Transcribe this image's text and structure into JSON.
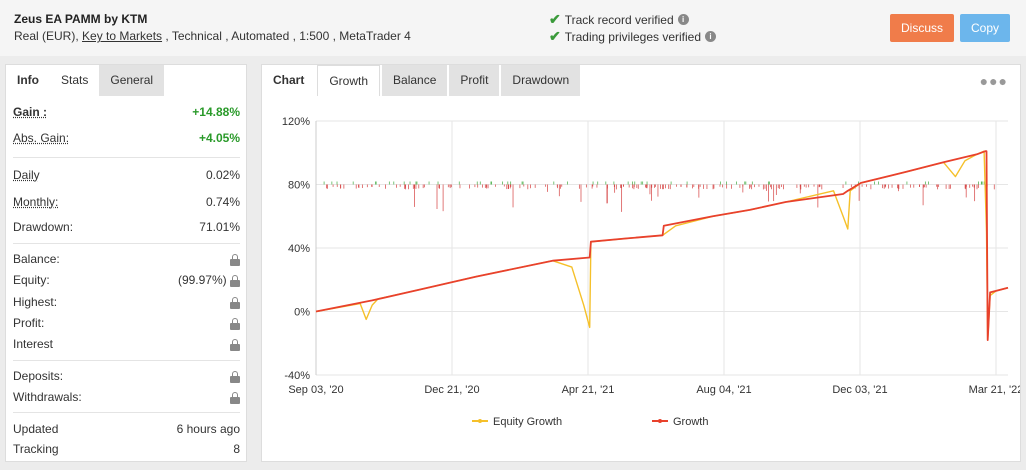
{
  "header": {
    "title": "Zeus EA PAMM by KTM",
    "sub_prefix": "Real (EUR), ",
    "broker_link": "Key to Markets",
    "sub_suffix": " , Technical , Automated , 1:500 , MetaTrader 4",
    "track_record": "Track record verified",
    "trading_privileges": "Trading privileges verified",
    "discuss_label": "Discuss",
    "copy_label": "Copy"
  },
  "left_tabs": [
    "Info",
    "Stats",
    "General"
  ],
  "stats": {
    "gain": {
      "label": "Gain :",
      "value": "+14.88%"
    },
    "abs_gain": {
      "label": "Abs. Gain:",
      "value": "+4.05%"
    },
    "daily": {
      "label": "Daily",
      "value": "0.02%"
    },
    "monthly": {
      "label": "Monthly:",
      "value": "0.74%"
    },
    "drawdown": {
      "label": "Drawdown:",
      "value": "71.01%"
    },
    "balance": {
      "label": "Balance:"
    },
    "equity": {
      "label": "Equity:",
      "value": "(99.97%)"
    },
    "highest": {
      "label": "Highest:"
    },
    "profit": {
      "label": "Profit:"
    },
    "interest": {
      "label": "Interest"
    },
    "deposits": {
      "label": "Deposits:"
    },
    "withdrawals": {
      "label": "Withdrawals:"
    },
    "updated": {
      "label": "Updated",
      "value": "6 hours ago"
    },
    "tracking": {
      "label": "Tracking",
      "value": "8"
    }
  },
  "right_tabs": [
    "Chart",
    "Growth",
    "Balance",
    "Profit",
    "Drawdown"
  ],
  "colors": {
    "growth": "#e8412c",
    "equity": "#f5c02a",
    "trade_up": "#3aa93a",
    "trade_down": "#d43a3a",
    "accent_discuss": "#f07c4a",
    "accent_copy": "#6cb6ec"
  },
  "chart_data": {
    "type": "line",
    "title": "",
    "xlabel": "",
    "ylabel": "",
    "x_ticks": [
      "Sep 03, '20",
      "Dec 21, '20",
      "Apr 21, '21",
      "Aug 04, '21",
      "Dec 03, '21",
      "Mar 21, '22"
    ],
    "y_ticks": [
      "120%",
      "80%",
      "40%",
      "0%",
      "-40%"
    ],
    "ylim": [
      -40,
      120
    ],
    "grid": true,
    "legend_position": "bottom",
    "series": [
      {
        "name": "Equity Growth",
        "x": [
          "2020-09-03",
          "2020-10-10",
          "2020-10-15",
          "2020-10-20",
          "2020-10-25",
          "2020-11-30",
          "2021-01-15",
          "2021-03-20",
          "2021-04-05",
          "2021-04-15",
          "2021-04-20",
          "2021-04-21",
          "2021-04-22",
          "2021-05-20",
          "2021-06-20",
          "2021-07-01",
          "2021-08-01",
          "2021-09-01",
          "2021-10-01",
          "2021-11-10",
          "2021-11-18",
          "2021-11-22",
          "2021-11-24",
          "2021-12-03",
          "2022-01-10",
          "2022-02-10",
          "2022-02-20",
          "2022-02-28",
          "2022-03-10",
          "2022-03-16",
          "2022-03-18",
          "2022-03-19",
          "2022-03-21",
          "2022-03-26",
          "2022-04-05"
        ],
        "values": [
          0,
          5,
          -5,
          4,
          8,
          14,
          22,
          32,
          28,
          4,
          -10,
          44,
          44,
          46,
          48,
          54,
          60,
          64,
          69,
          76,
          60,
          52,
          76,
          81,
          88,
          94,
          85,
          95,
          99,
          101,
          50,
          -18,
          10,
          13,
          15
        ]
      },
      {
        "name": "Growth",
        "x": [
          "2020-09-03",
          "2020-10-20",
          "2020-11-30",
          "2021-01-15",
          "2021-03-20",
          "2021-04-20",
          "2021-04-21",
          "2021-05-20",
          "2021-06-20",
          "2021-06-21",
          "2021-08-01",
          "2021-09-01",
          "2021-10-01",
          "2021-11-18",
          "2021-11-22",
          "2021-12-03",
          "2022-01-10",
          "2022-02-10",
          "2022-03-10",
          "2022-03-17",
          "2022-03-18",
          "2022-03-19",
          "2022-03-21",
          "2022-03-26",
          "2022-04-05"
        ],
        "values": [
          0,
          7,
          14,
          22,
          32,
          34,
          44,
          46,
          48,
          54,
          60,
          64,
          69,
          74,
          76,
          81,
          88,
          94,
          99,
          101,
          101,
          -18,
          12,
          13,
          15
        ]
      }
    ]
  }
}
